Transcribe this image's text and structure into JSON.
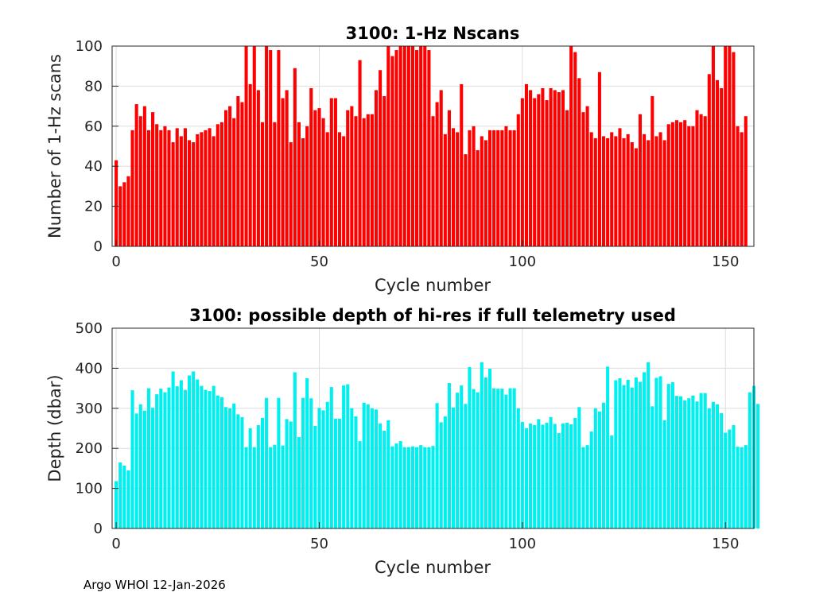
{
  "chart_data": [
    {
      "type": "bar",
      "title": "3100: 1-Hz Nscans",
      "xlabel": "Cycle number",
      "ylabel": "Number of 1-Hz scans",
      "xlim": [
        -1,
        157
      ],
      "ylim": [
        0,
        100
      ],
      "xticks": [
        0,
        50,
        100,
        150
      ],
      "yticks": [
        0,
        20,
        40,
        60,
        80,
        100
      ],
      "grid": true,
      "bar_color": "#ff0000",
      "x_start": 0,
      "values": [
        43,
        30,
        32,
        35,
        58,
        71,
        65,
        70,
        58,
        67,
        61,
        58,
        60,
        58,
        52,
        59,
        55,
        59,
        53,
        52,
        56,
        57,
        58,
        59,
        55,
        61,
        62,
        68,
        70,
        64,
        75,
        72,
        100,
        81,
        100,
        78,
        62,
        100,
        98,
        62,
        98,
        74,
        78,
        52,
        89,
        62,
        54,
        60,
        79,
        68,
        69,
        64,
        57,
        74,
        74,
        57,
        55,
        68,
        70,
        65,
        93,
        64,
        66,
        66,
        78,
        88,
        75,
        100,
        95,
        98,
        100,
        100,
        100,
        100,
        98,
        100,
        100,
        98,
        65,
        72,
        78,
        56,
        68,
        59,
        57,
        81,
        46,
        58,
        60,
        48,
        55,
        53,
        58,
        58,
        58,
        58,
        60,
        58,
        58,
        66,
        74,
        81,
        78,
        74,
        76,
        79,
        73,
        79,
        78,
        77,
        78,
        68,
        100,
        97,
        84,
        67,
        70,
        57,
        54,
        87,
        55,
        54,
        57,
        55,
        59,
        54,
        56,
        52,
        49,
        66,
        56,
        53,
        75,
        55,
        57,
        53,
        61,
        62,
        63,
        62,
        63,
        60,
        60,
        68,
        66,
        65,
        86,
        100,
        83,
        79,
        100,
        100,
        97,
        60,
        57,
        65
      ]
    },
    {
      "type": "bar",
      "title": "3100: possible depth of hi-res if full telemetry used",
      "xlabel": "Cycle number",
      "ylabel": "Depth (dbar)",
      "xlim": [
        -1,
        157
      ],
      "ylim": [
        0,
        500
      ],
      "xticks": [
        0,
        50,
        100,
        150
      ],
      "yticks": [
        0,
        100,
        200,
        300,
        400,
        500
      ],
      "grid": true,
      "bar_color": "#00f0f0",
      "x_start": 0,
      "values": [
        118,
        165,
        157,
        145,
        345,
        287,
        310,
        294,
        350,
        301,
        335,
        349,
        340,
        352,
        392,
        355,
        370,
        346,
        382,
        392,
        372,
        356,
        346,
        343,
        356,
        332,
        328,
        303,
        300,
        312,
        285,
        278,
        203,
        250,
        203,
        258,
        276,
        326,
        203,
        209,
        326,
        207,
        273,
        267,
        390,
        228,
        326,
        375,
        325,
        256,
        301,
        295,
        316,
        353,
        274,
        274,
        357,
        360,
        300,
        280,
        218,
        314,
        310,
        300,
        297,
        262,
        244,
        270,
        205,
        212,
        218,
        203,
        203,
        205,
        203,
        208,
        203,
        203,
        206,
        313,
        265,
        280,
        363,
        302,
        339,
        357,
        311,
        403,
        348,
        340,
        415,
        377,
        399,
        350,
        349,
        349,
        334,
        350,
        350,
        300,
        266,
        250,
        262,
        258,
        273,
        259,
        264,
        278,
        261,
        238,
        262,
        264,
        260,
        276,
        303,
        203,
        208,
        242,
        300,
        292,
        314,
        404,
        232,
        370,
        375,
        358,
        371,
        352,
        377,
        366,
        390,
        415,
        305,
        376,
        380,
        270,
        361,
        365,
        331,
        330,
        320,
        325,
        332,
        317,
        338,
        338,
        300,
        316,
        310,
        288,
        239,
        247,
        258,
        204,
        203,
        208,
        340,
        356,
        311
      ]
    }
  ],
  "footer": "Argo WHOI 12-Jan-2026"
}
